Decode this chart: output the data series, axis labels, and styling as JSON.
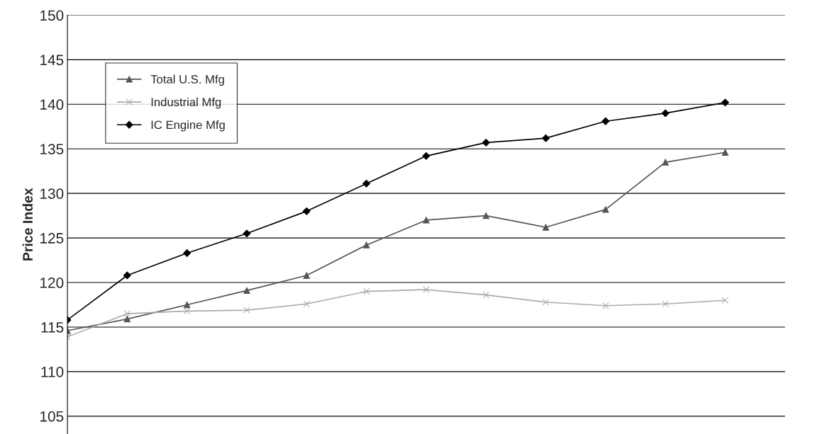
{
  "chart_data": {
    "type": "line",
    "ylabel": "Price Index",
    "categories": [
      null,
      null,
      null,
      null,
      null,
      null,
      null,
      null,
      null,
      null,
      null,
      null
    ],
    "series": [
      {
        "name": "Total U.S. Mfg",
        "color": "#555555",
        "marker": "triangle",
        "values": [
          114.6,
          115.9,
          117.5,
          119.1,
          120.8,
          124.2,
          127.0,
          127.5,
          126.2,
          128.2,
          133.5,
          134.6
        ]
      },
      {
        "name": "Industrial Mfg",
        "color": "#aaaaaa",
        "marker": "cross",
        "values": [
          113.9,
          116.5,
          116.8,
          116.9,
          117.6,
          119.0,
          119.2,
          118.6,
          117.8,
          117.4,
          117.6,
          118.0
        ]
      },
      {
        "name": "IC Engine Mfg",
        "color": "#000000",
        "marker": "diamond",
        "values": [
          115.8,
          120.8,
          123.3,
          125.5,
          128.0,
          131.1,
          134.2,
          135.7,
          136.2,
          138.1,
          139.0,
          140.2
        ]
      }
    ],
    "ylim": [
      103,
      150
    ],
    "yticks": [
      105,
      110,
      115,
      120,
      125,
      130,
      135,
      140,
      145,
      150
    ],
    "grid": "y",
    "legend": "top left"
  }
}
